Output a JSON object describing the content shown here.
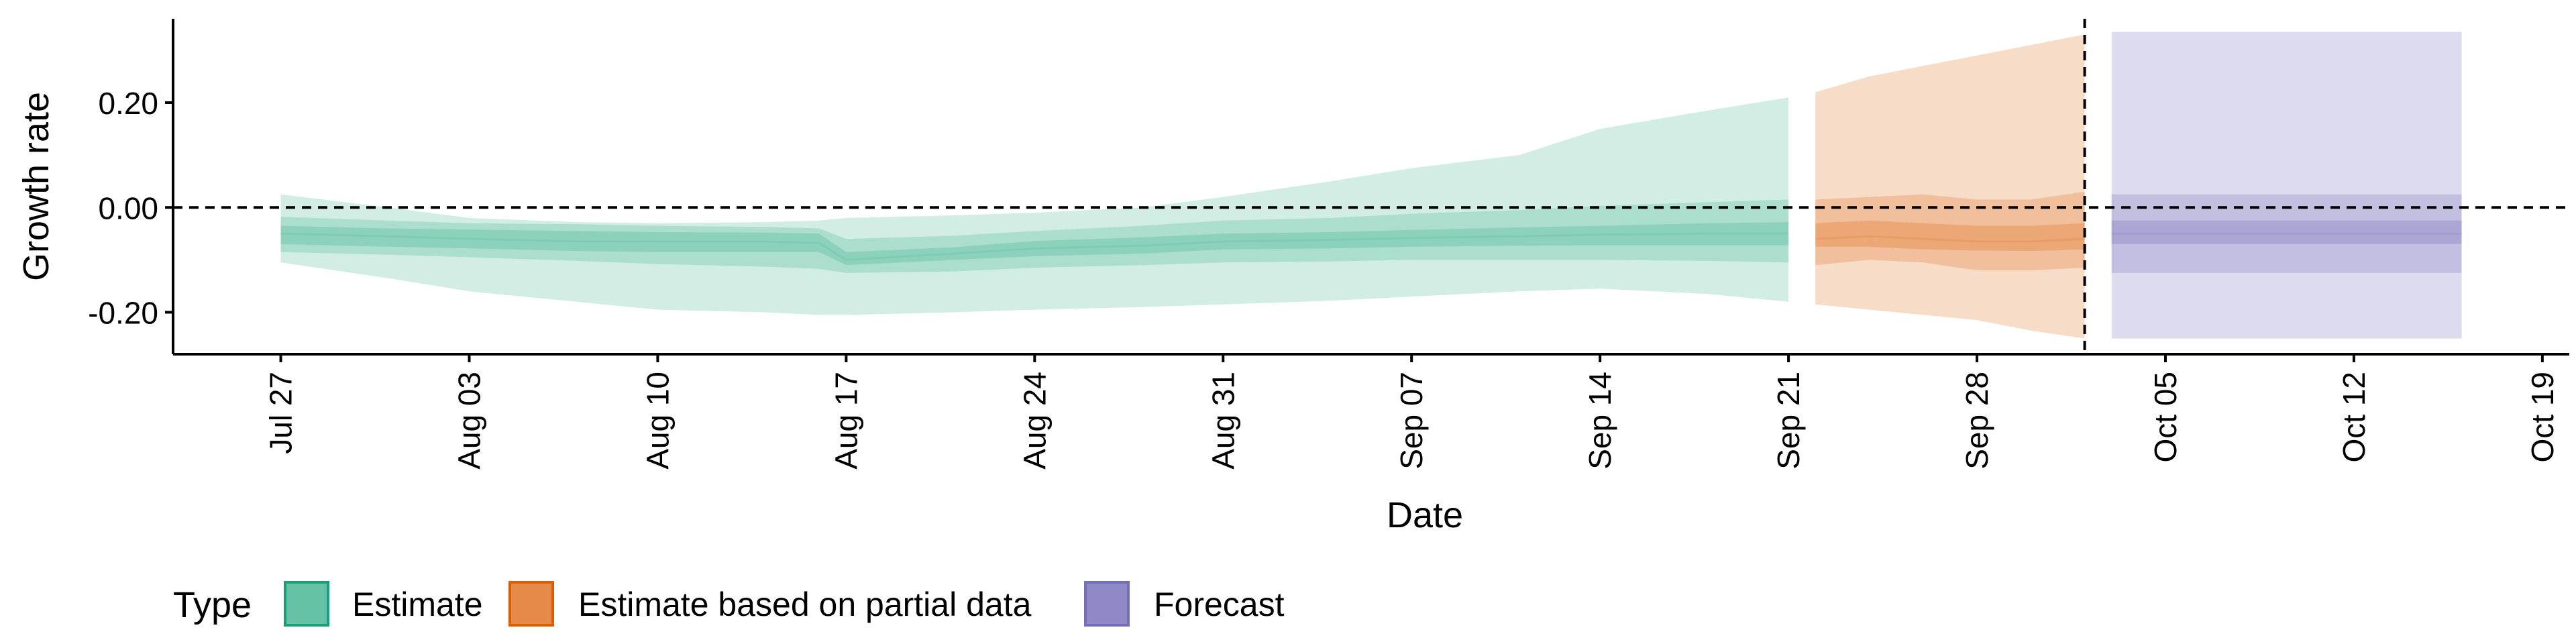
{
  "chart_data": {
    "type": "area",
    "title": "",
    "xlabel": "Date",
    "ylabel": "Growth rate",
    "x_ticks": [
      "Jul 27",
      "Aug 03",
      "Aug 10",
      "Aug 17",
      "Aug 24",
      "Aug 31",
      "Sep 07",
      "Sep 14",
      "Sep 21",
      "Sep 28",
      "Oct 05",
      "Oct 12",
      "Oct 19"
    ],
    "y_ticks": [
      "0.20",
      "0.00",
      "-0.20"
    ],
    "y_tick_values": [
      0.2,
      0.0,
      -0.2
    ],
    "xlim": [
      "2020-07-23",
      "2020-10-20"
    ],
    "ylim": [
      -0.28,
      0.36
    ],
    "reference_hline": 0.0,
    "reference_vline": "2020-10-02",
    "grid": false,
    "legend": {
      "title": "Type",
      "placement": "bottom-left",
      "entries": [
        {
          "label": "Estimate",
          "color": "#66c2a5"
        },
        {
          "label": "Estimate based on partial data",
          "color": "#e58a49"
        },
        {
          "label": "Forecast",
          "color": "#8f8ac7"
        }
      ]
    },
    "series": [
      {
        "name": "Estimate",
        "fill_color": "#66c2a5",
        "dates": [
          "2020-07-27",
          "2020-07-31",
          "2020-08-03",
          "2020-08-07",
          "2020-08-10",
          "2020-08-14",
          "2020-08-16",
          "2020-08-17",
          "2020-08-21",
          "2020-08-24",
          "2020-08-28",
          "2020-08-31",
          "2020-09-04",
          "2020-09-07",
          "2020-09-11",
          "2020-09-14",
          "2020-09-18",
          "2020-09-21"
        ],
        "median": [
          -0.05,
          -0.055,
          -0.06,
          -0.065,
          -0.065,
          -0.065,
          -0.068,
          -0.1,
          -0.088,
          -0.078,
          -0.073,
          -0.065,
          -0.062,
          -0.058,
          -0.055,
          -0.052,
          -0.05,
          -0.05
        ],
        "inner_lower": [
          -0.07,
          -0.075,
          -0.078,
          -0.083,
          -0.085,
          -0.085,
          -0.085,
          -0.11,
          -0.1,
          -0.093,
          -0.088,
          -0.08,
          -0.078,
          -0.075,
          -0.073,
          -0.072,
          -0.072,
          -0.072
        ],
        "inner_upper": [
          -0.035,
          -0.04,
          -0.042,
          -0.045,
          -0.047,
          -0.048,
          -0.05,
          -0.085,
          -0.076,
          -0.064,
          -0.057,
          -0.05,
          -0.047,
          -0.043,
          -0.038,
          -0.035,
          -0.03,
          -0.028
        ],
        "mid_lower": [
          -0.085,
          -0.09,
          -0.095,
          -0.102,
          -0.108,
          -0.113,
          -0.117,
          -0.125,
          -0.122,
          -0.115,
          -0.11,
          -0.105,
          -0.103,
          -0.1,
          -0.1,
          -0.1,
          -0.102,
          -0.105
        ],
        "mid_upper": [
          -0.018,
          -0.025,
          -0.03,
          -0.032,
          -0.035,
          -0.037,
          -0.04,
          -0.06,
          -0.054,
          -0.045,
          -0.035,
          -0.025,
          -0.02,
          -0.012,
          -0.005,
          0.003,
          0.01,
          0.015
        ],
        "outer_lower": [
          -0.105,
          -0.135,
          -0.16,
          -0.18,
          -0.195,
          -0.2,
          -0.205,
          -0.205,
          -0.2,
          -0.195,
          -0.19,
          -0.185,
          -0.178,
          -0.17,
          -0.16,
          -0.155,
          -0.165,
          -0.18
        ],
        "outer_upper": [
          0.025,
          0.0,
          -0.02,
          -0.028,
          -0.03,
          -0.028,
          -0.025,
          -0.02,
          -0.015,
          -0.01,
          0.0,
          0.02,
          0.05,
          0.075,
          0.1,
          0.15,
          0.185,
          0.21
        ]
      },
      {
        "name": "Estimate based on partial data",
        "fill_color": "#e58a49",
        "dates": [
          "2020-09-22",
          "2020-09-24",
          "2020-09-26",
          "2020-09-28",
          "2020-09-30",
          "2020-10-02"
        ],
        "median": [
          -0.06,
          -0.055,
          -0.06,
          -0.065,
          -0.065,
          -0.06
        ],
        "inner_lower": [
          -0.075,
          -0.075,
          -0.08,
          -0.082,
          -0.083,
          -0.08
        ],
        "inner_upper": [
          -0.03,
          -0.025,
          -0.03,
          -0.035,
          -0.035,
          -0.03
        ],
        "mid_lower": [
          -0.11,
          -0.1,
          -0.105,
          -0.12,
          -0.12,
          -0.115
        ],
        "mid_upper": [
          0.015,
          0.02,
          0.025,
          0.015,
          0.015,
          0.03
        ],
        "outer_lower": [
          -0.185,
          -0.195,
          -0.205,
          -0.215,
          -0.235,
          -0.25
        ],
        "outer_upper": [
          0.22,
          0.25,
          0.27,
          0.29,
          0.31,
          0.33
        ]
      },
      {
        "name": "Forecast",
        "fill_color": "#8f8ac7",
        "dates": [
          "2020-10-03",
          "2020-10-16"
        ],
        "median": [
          -0.05,
          -0.05
        ],
        "inner_lower": [
          -0.07,
          -0.07
        ],
        "inner_upper": [
          -0.025,
          -0.025
        ],
        "mid_lower": [
          -0.125,
          -0.125
        ],
        "mid_upper": [
          0.025,
          0.025
        ],
        "outer_lower": [
          -0.25,
          -0.25
        ],
        "outer_upper": [
          0.335,
          0.335
        ]
      }
    ]
  }
}
